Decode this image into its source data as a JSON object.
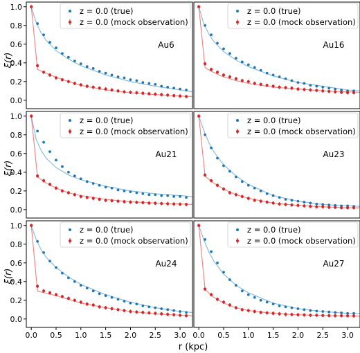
{
  "figure": {
    "ylabel": "ξ(r)",
    "xlabel": "r (kpc)",
    "xlim": [
      -0.1,
      3.25
    ],
    "ylim": [
      -0.09,
      1.05
    ],
    "x_ticks": [
      0.0,
      0.5,
      1.0,
      1.5,
      2.0,
      2.5,
      3.0
    ],
    "x_tick_labels": [
      "0.0",
      "0.5",
      "1.0",
      "1.5",
      "2.0",
      "2.5",
      "3.0"
    ],
    "y_ticks": [
      0.0,
      0.2,
      0.4,
      0.6,
      0.8,
      1.0
    ],
    "y_tick_labels": [
      "0.0",
      "0.2",
      "0.4",
      "0.6",
      "0.8",
      "1.0"
    ],
    "legend": {
      "placement": "top-right",
      "entries": [
        "z = 0.0 (true)",
        "z = 0.0 (mock observation)"
      ]
    },
    "colors": {
      "true": "#1f77b4",
      "true_line": "#7fb8e0",
      "mock": "#d62728",
      "mock_line": "#f08080"
    }
  },
  "chart_data": [
    {
      "type": "scatter",
      "title": "Au6",
      "x": [
        0.0,
        0.125,
        0.25,
        0.375,
        0.5,
        0.625,
        0.75,
        0.875,
        1.0,
        1.125,
        1.25,
        1.375,
        1.5,
        1.625,
        1.75,
        1.875,
        2.0,
        2.125,
        2.25,
        2.375,
        2.5,
        2.625,
        2.75,
        2.875,
        3.0,
        3.125
      ],
      "series": [
        {
          "name": "z = 0.0 (true)",
          "values": [
            1.0,
            0.82,
            0.7,
            0.62,
            0.56,
            0.5,
            0.46,
            0.42,
            0.39,
            0.36,
            0.34,
            0.31,
            0.29,
            0.27,
            0.25,
            0.24,
            0.22,
            0.21,
            0.19,
            0.18,
            0.17,
            0.15,
            0.14,
            0.13,
            0.12,
            0.11
          ]
        },
        {
          "name": "z = 0.0 (mock observation)",
          "values": [
            1.0,
            0.37,
            0.3,
            0.27,
            0.24,
            0.22,
            0.2,
            0.18,
            0.165,
            0.15,
            0.14,
            0.13,
            0.12,
            0.11,
            0.1,
            0.09,
            0.085,
            0.08,
            0.075,
            0.07,
            0.065,
            0.06,
            0.055,
            0.05,
            0.045,
            0.04
          ]
        }
      ],
      "fits": [
        {
          "x": [
            0.0,
            0.1,
            0.2,
            0.3,
            0.5,
            0.75,
            1.0,
            1.5,
            2.0,
            2.5,
            3.0,
            3.25
          ],
          "y": [
            1.0,
            0.83,
            0.72,
            0.64,
            0.53,
            0.44,
            0.37,
            0.27,
            0.2,
            0.15,
            0.11,
            0.09
          ]
        },
        {
          "x": [
            0.0,
            0.125,
            0.25,
            0.5,
            0.75,
            1.0,
            1.5,
            2.0,
            2.5,
            3.0,
            3.25
          ],
          "y": [
            1.0,
            0.33,
            0.3,
            0.245,
            0.2,
            0.16,
            0.11,
            0.08,
            0.06,
            0.045,
            0.04
          ]
        }
      ]
    },
    {
      "type": "scatter",
      "title": "Au16",
      "x": [
        0.0,
        0.125,
        0.25,
        0.375,
        0.5,
        0.625,
        0.75,
        0.875,
        1.0,
        1.125,
        1.25,
        1.375,
        1.5,
        1.625,
        1.75,
        1.875,
        2.0,
        2.125,
        2.25,
        2.375,
        2.5,
        2.625,
        2.75,
        2.875,
        3.0,
        3.125
      ],
      "series": [
        {
          "name": "z = 0.0 (true)",
          "values": [
            1.0,
            0.8,
            0.7,
            0.61,
            0.55,
            0.5,
            0.45,
            0.41,
            0.38,
            0.35,
            0.32,
            0.29,
            0.27,
            0.25,
            0.23,
            0.21,
            0.19,
            0.18,
            0.16,
            0.15,
            0.14,
            0.13,
            0.12,
            0.11,
            0.1,
            0.1
          ]
        },
        {
          "name": "z = 0.0 (mock observation)",
          "values": [
            1.0,
            0.39,
            0.33,
            0.3,
            0.27,
            0.25,
            0.23,
            0.21,
            0.2,
            0.18,
            0.17,
            0.16,
            0.15,
            0.14,
            0.135,
            0.13,
            0.12,
            0.115,
            0.11,
            0.105,
            0.1,
            0.095,
            0.09,
            0.085,
            0.08,
            0.08
          ]
        }
      ],
      "fits": [
        {
          "x": [
            0.0,
            0.1,
            0.2,
            0.3,
            0.5,
            0.75,
            1.0,
            1.5,
            2.0,
            2.5,
            3.0,
            3.25
          ],
          "y": [
            1.0,
            0.82,
            0.71,
            0.63,
            0.52,
            0.43,
            0.36,
            0.26,
            0.19,
            0.15,
            0.11,
            0.1
          ]
        },
        {
          "x": [
            0.0,
            0.125,
            0.25,
            0.5,
            0.75,
            1.0,
            1.5,
            2.0,
            2.5,
            3.0,
            3.25
          ],
          "y": [
            1.0,
            0.35,
            0.31,
            0.25,
            0.21,
            0.18,
            0.14,
            0.12,
            0.1,
            0.09,
            0.085
          ]
        }
      ]
    },
    {
      "type": "scatter",
      "title": "Au21",
      "x": [
        0.0,
        0.125,
        0.25,
        0.375,
        0.5,
        0.625,
        0.75,
        0.875,
        1.0,
        1.125,
        1.25,
        1.375,
        1.5,
        1.625,
        1.75,
        1.875,
        2.0,
        2.125,
        2.25,
        2.375,
        2.5,
        2.625,
        2.75,
        2.875,
        3.0,
        3.125
      ],
      "series": [
        {
          "name": "z = 0.0 (true)",
          "values": [
            1.0,
            0.84,
            0.72,
            0.62,
            0.53,
            0.46,
            0.4,
            0.36,
            0.33,
            0.3,
            0.28,
            0.26,
            0.24,
            0.23,
            0.21,
            0.2,
            0.19,
            0.18,
            0.17,
            0.16,
            0.16,
            0.15,
            0.15,
            0.14,
            0.14,
            0.13
          ]
        },
        {
          "name": "z = 0.0 (mock observation)",
          "values": [
            1.0,
            0.36,
            0.31,
            0.27,
            0.23,
            0.2,
            0.18,
            0.16,
            0.14,
            0.13,
            0.12,
            0.11,
            0.1,
            0.095,
            0.09,
            0.085,
            0.08,
            0.078,
            0.075,
            0.07,
            0.068,
            0.065,
            0.063,
            0.06,
            0.058,
            0.055
          ]
        }
      ],
      "fits": [
        {
          "x": [
            0.0,
            0.1,
            0.2,
            0.3,
            0.5,
            0.75,
            1.0,
            1.5,
            2.0,
            2.5,
            3.0,
            3.25
          ],
          "y": [
            1.0,
            0.75,
            0.63,
            0.55,
            0.45,
            0.37,
            0.32,
            0.25,
            0.2,
            0.17,
            0.15,
            0.14
          ]
        },
        {
          "x": [
            0.0,
            0.125,
            0.25,
            0.5,
            0.75,
            1.0,
            1.5,
            2.0,
            2.5,
            3.0,
            3.25
          ],
          "y": [
            1.0,
            0.35,
            0.3,
            0.23,
            0.18,
            0.15,
            0.11,
            0.085,
            0.07,
            0.06,
            0.055
          ]
        }
      ]
    },
    {
      "type": "scatter",
      "title": "Au23",
      "x": [
        0.0,
        0.125,
        0.25,
        0.375,
        0.5,
        0.625,
        0.75,
        0.875,
        1.0,
        1.125,
        1.25,
        1.375,
        1.5,
        1.625,
        1.75,
        1.875,
        2.0,
        2.125,
        2.25,
        2.375,
        2.5,
        2.625,
        2.75,
        2.875,
        3.0,
        3.125
      ],
      "series": [
        {
          "name": "z = 0.0 (true)",
          "values": [
            1.0,
            0.8,
            0.66,
            0.55,
            0.47,
            0.41,
            0.35,
            0.3,
            0.26,
            0.23,
            0.2,
            0.17,
            0.15,
            0.13,
            0.11,
            0.1,
            0.09,
            0.08,
            0.07,
            0.06,
            0.055,
            0.05,
            0.045,
            0.04,
            0.04,
            0.035
          ]
        },
        {
          "name": "z = 0.0 (mock observation)",
          "values": [
            1.0,
            0.37,
            0.31,
            0.26,
            0.22,
            0.18,
            0.16,
            0.14,
            0.12,
            0.1,
            0.09,
            0.08,
            0.07,
            0.06,
            0.055,
            0.05,
            0.045,
            0.04,
            0.035,
            0.03,
            0.03,
            0.025,
            0.025,
            0.02,
            0.02,
            0.02
          ]
        }
      ],
      "fits": [
        {
          "x": [
            0.0,
            0.1,
            0.2,
            0.3,
            0.5,
            0.75,
            1.0,
            1.5,
            2.0,
            2.5,
            3.0,
            3.25
          ],
          "y": [
            1.0,
            0.85,
            0.72,
            0.62,
            0.48,
            0.36,
            0.27,
            0.15,
            0.09,
            0.055,
            0.04,
            0.035
          ]
        },
        {
          "x": [
            0.0,
            0.125,
            0.25,
            0.5,
            0.75,
            1.0,
            1.5,
            2.0,
            2.5,
            3.0,
            3.25
          ],
          "y": [
            1.0,
            0.36,
            0.3,
            0.22,
            0.16,
            0.12,
            0.07,
            0.045,
            0.03,
            0.02,
            0.02
          ]
        }
      ]
    },
    {
      "type": "scatter",
      "title": "Au24",
      "x": [
        0.0,
        0.125,
        0.25,
        0.375,
        0.5,
        0.625,
        0.75,
        0.875,
        1.0,
        1.125,
        1.25,
        1.375,
        1.5,
        1.625,
        1.75,
        1.875,
        2.0,
        2.125,
        2.25,
        2.375,
        2.5,
        2.625,
        2.75,
        2.875,
        3.0,
        3.125
      ],
      "series": [
        {
          "name": "z = 0.0 (true)",
          "values": [
            1.0,
            0.83,
            0.71,
            0.62,
            0.55,
            0.49,
            0.44,
            0.4,
            0.36,
            0.33,
            0.3,
            0.27,
            0.25,
            0.23,
            0.21,
            0.19,
            0.17,
            0.16,
            0.14,
            0.13,
            0.12,
            0.11,
            0.1,
            0.09,
            0.08,
            0.07
          ]
        },
        {
          "name": "z = 0.0 (mock observation)",
          "values": [
            1.0,
            0.35,
            0.3,
            0.28,
            0.26,
            0.24,
            0.22,
            0.2,
            0.18,
            0.16,
            0.15,
            0.13,
            0.12,
            0.11,
            0.1,
            0.09,
            0.08,
            0.075,
            0.07,
            0.065,
            0.06,
            0.055,
            0.05,
            0.045,
            0.04,
            0.035
          ]
        }
      ],
      "fits": [
        {
          "x": [
            0.0,
            0.1,
            0.2,
            0.3,
            0.5,
            0.75,
            1.0,
            1.5,
            2.0,
            2.5,
            3.0,
            3.25
          ],
          "y": [
            1.0,
            0.85,
            0.74,
            0.66,
            0.55,
            0.45,
            0.37,
            0.26,
            0.18,
            0.12,
            0.08,
            0.07
          ]
        },
        {
          "x": [
            0.0,
            0.125,
            0.25,
            0.5,
            0.75,
            1.0,
            1.5,
            2.0,
            2.5,
            3.0,
            3.25
          ],
          "y": [
            1.0,
            0.3,
            0.28,
            0.25,
            0.21,
            0.17,
            0.12,
            0.08,
            0.055,
            0.04,
            0.035
          ]
        }
      ]
    },
    {
      "type": "scatter",
      "title": "Au27",
      "x": [
        0.0,
        0.125,
        0.25,
        0.375,
        0.5,
        0.625,
        0.75,
        0.875,
        1.0,
        1.125,
        1.25,
        1.375,
        1.5,
        1.625,
        1.75,
        1.875,
        2.0,
        2.125,
        2.25,
        2.375,
        2.5,
        2.625,
        2.75,
        2.875,
        3.0,
        3.125
      ],
      "series": [
        {
          "name": "z = 0.0 (true)",
          "values": [
            1.0,
            0.85,
            0.72,
            0.6,
            0.5,
            0.42,
            0.36,
            0.3,
            0.26,
            0.23,
            0.2,
            0.18,
            0.16,
            0.14,
            0.13,
            0.12,
            0.11,
            0.1,
            0.09,
            0.085,
            0.08,
            0.075,
            0.07,
            0.065,
            0.06,
            0.06
          ]
        },
        {
          "name": "z = 0.0 (mock observation)",
          "values": [
            1.0,
            0.32,
            0.26,
            0.21,
            0.18,
            0.15,
            0.12,
            0.1,
            0.09,
            0.08,
            0.07,
            0.065,
            0.06,
            0.055,
            0.05,
            0.048,
            0.045,
            0.043,
            0.04,
            0.04,
            0.038,
            0.036,
            0.035,
            0.035,
            0.034,
            0.033
          ]
        }
      ],
      "fits": [
        {
          "x": [
            0.0,
            0.1,
            0.2,
            0.3,
            0.5,
            0.75,
            1.0,
            1.5,
            2.0,
            2.5,
            3.0,
            3.25
          ],
          "y": [
            1.0,
            0.85,
            0.72,
            0.62,
            0.48,
            0.36,
            0.28,
            0.17,
            0.11,
            0.08,
            0.06,
            0.055
          ]
        },
        {
          "x": [
            0.0,
            0.125,
            0.25,
            0.5,
            0.75,
            1.0,
            1.5,
            2.0,
            2.5,
            3.0,
            3.25
          ],
          "y": [
            1.0,
            0.32,
            0.25,
            0.17,
            0.12,
            0.09,
            0.06,
            0.045,
            0.038,
            0.033,
            0.03
          ]
        }
      ]
    }
  ]
}
